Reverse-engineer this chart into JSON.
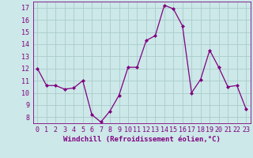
{
  "x": [
    0,
    1,
    2,
    3,
    4,
    5,
    6,
    7,
    8,
    9,
    10,
    11,
    12,
    13,
    14,
    15,
    16,
    17,
    18,
    19,
    20,
    21,
    22,
    23
  ],
  "y": [
    12.0,
    10.6,
    10.6,
    10.3,
    10.4,
    11.0,
    8.2,
    7.6,
    8.5,
    9.8,
    12.1,
    12.1,
    14.3,
    14.7,
    17.2,
    16.9,
    15.5,
    10.0,
    11.1,
    13.5,
    12.1,
    10.5,
    10.6,
    8.7
  ],
  "line_color": "#800080",
  "marker": "D",
  "marker_size": 2.0,
  "bg_color": "#cce8e8",
  "grid_color": "#aacccc",
  "xlabel": "Windchill (Refroidissement éolien,°C)",
  "xlim": [
    -0.5,
    23.5
  ],
  "ylim": [
    7.5,
    17.5
  ],
  "yticks": [
    8,
    9,
    10,
    11,
    12,
    13,
    14,
    15,
    16,
    17
  ],
  "xticks": [
    0,
    1,
    2,
    3,
    4,
    5,
    6,
    7,
    8,
    9,
    10,
    11,
    12,
    13,
    14,
    15,
    16,
    17,
    18,
    19,
    20,
    21,
    22,
    23
  ],
  "axis_fontsize": 6.5,
  "tick_fontsize": 6.0,
  "linewidth": 0.9
}
